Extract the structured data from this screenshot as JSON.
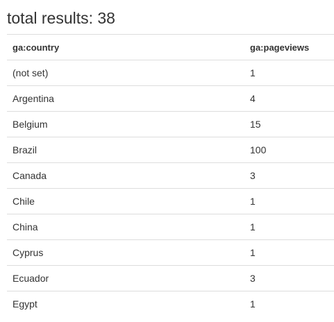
{
  "title": "total results: 38",
  "table": {
    "columns": [
      "ga:country",
      "ga:pageviews"
    ],
    "rows": [
      {
        "country": "(not set)",
        "pageviews": "1"
      },
      {
        "country": "Argentina",
        "pageviews": "4"
      },
      {
        "country": "Belgium",
        "pageviews": "15"
      },
      {
        "country": "Brazil",
        "pageviews": "100"
      },
      {
        "country": "Canada",
        "pageviews": "3"
      },
      {
        "country": "Chile",
        "pageviews": "1"
      },
      {
        "country": "China",
        "pageviews": "1"
      },
      {
        "country": "Cyprus",
        "pageviews": "1"
      },
      {
        "country": "Ecuador",
        "pageviews": "3"
      },
      {
        "country": "Egypt",
        "pageviews": "1"
      }
    ]
  }
}
